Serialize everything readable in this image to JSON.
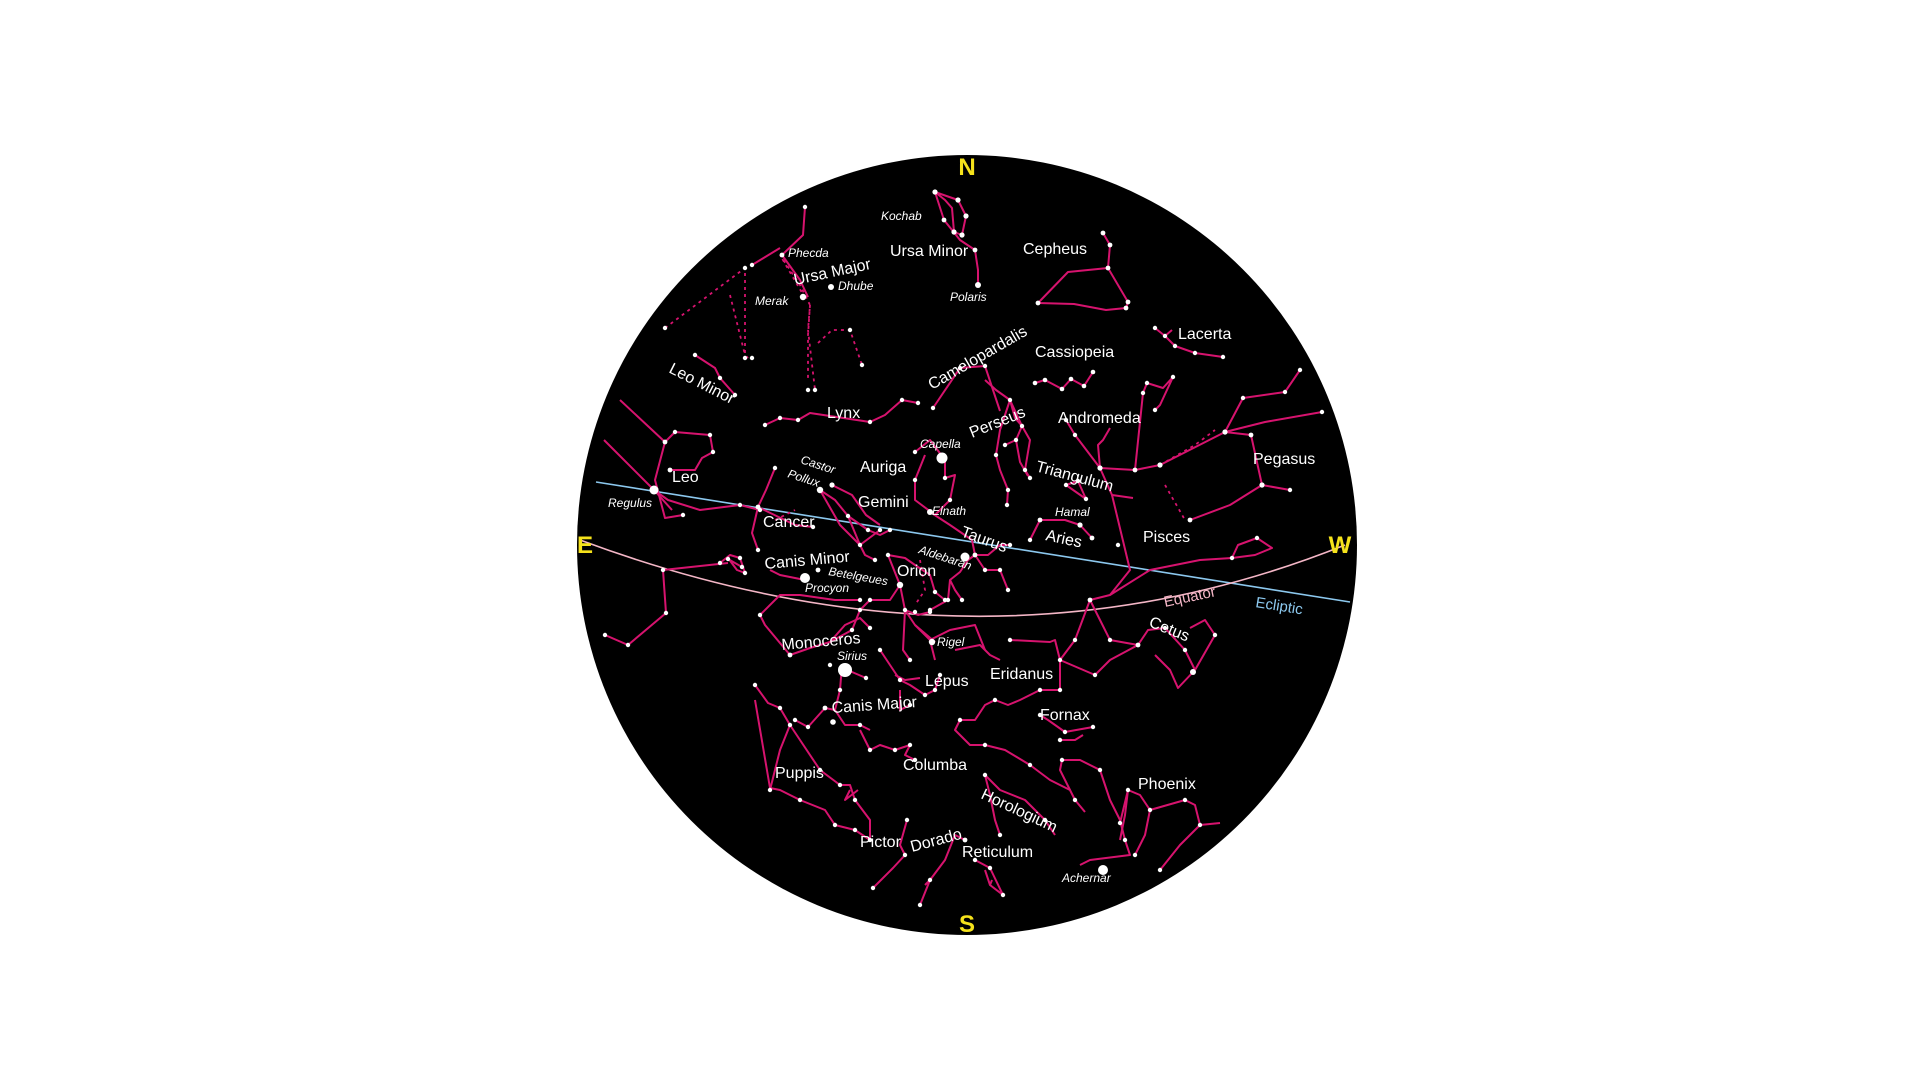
{
  "colors": {
    "sky": "#000000",
    "constellation": "#d6136e",
    "star": "#ffffff",
    "cardinal": "#f5e21b",
    "ecliptic": "#8cc8ee",
    "equator": "#f4b6c6"
  },
  "cardinals": {
    "north": "N",
    "south": "S",
    "east": "E",
    "west": "W"
  },
  "great_circles": {
    "ecliptic": "Ecliptic",
    "equator": "Equator"
  },
  "constellations": {
    "ursa_minor": "Ursa Minor",
    "cepheus": "Cepheus",
    "ursa_major": "Ursa Major",
    "lacerta": "Lacerta",
    "cassiopeia": "Cassiopeia",
    "camelopardalis": "Camelopardalis",
    "leo_minor": "Leo Minor",
    "lynx": "Lynx",
    "perseus": "Perseus",
    "andromeda": "Andromeda",
    "pegasus": "Pegasus",
    "leo": "Leo",
    "auriga": "Auriga",
    "triangulum": "Triangulum",
    "gemini": "Gemini",
    "cancer": "Cancer",
    "taurus": "Taurus",
    "aries": "Aries",
    "pisces": "Pisces",
    "canis_minor": "Canis Minor",
    "orion": "Orion",
    "cetus": "Cetus",
    "monoceros": "Monoceros",
    "eridanus": "Eridanus",
    "lepus": "Lepus",
    "canis_major": "Canis Major",
    "fornax": "Fornax",
    "columba": "Columba",
    "puppis": "Puppis",
    "phoenix": "Phoenix",
    "horologium": "Horologium",
    "pictor": "Pictor",
    "dorado": "Dorado",
    "reticulum": "Reticulum"
  },
  "stars": {
    "kochab": "Kochab",
    "phecda": "Phecda",
    "dhube": "Dhube",
    "merak": "Merak",
    "polaris": "Polaris",
    "capella": "Capella",
    "castor": "Castor",
    "pollux": "Pollux",
    "regulus": "Regulus",
    "elnath": "Elnath",
    "hamal": "Hamal",
    "aldebaran": "Aldebaran",
    "procyon": "Procyon",
    "betelgeues": "Betelgeues",
    "rigel": "Rigel",
    "sirius": "Sirius",
    "achernar": "Achernar"
  }
}
